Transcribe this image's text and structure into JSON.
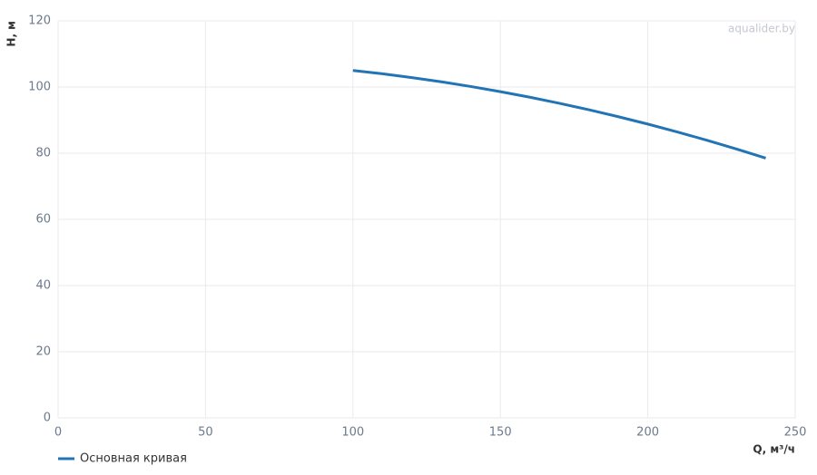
{
  "chart_data": {
    "type": "line",
    "watermark": "aqualider.by",
    "x_label": "Q, м³/ч",
    "y_label": "H, м",
    "x": [
      100,
      110,
      120,
      130,
      140,
      150,
      160,
      170,
      180,
      190,
      200,
      210,
      220,
      230,
      240
    ],
    "series": [
      {
        "name": "Основная кривая",
        "color": "#2274b5",
        "values": [
          105,
          104,
          102.85,
          101.57,
          100.15,
          98.6,
          96.91,
          95.09,
          93.13,
          91.03,
          88.8,
          86.43,
          83.93,
          81.29,
          78.5
        ]
      }
    ],
    "xlim": [
      0,
      250
    ],
    "xticks": [
      0,
      50,
      100,
      150,
      200,
      250
    ],
    "ylim": [
      0,
      120
    ],
    "yticks": [
      0,
      20,
      40,
      60,
      80,
      100,
      120
    ],
    "grid": true
  }
}
